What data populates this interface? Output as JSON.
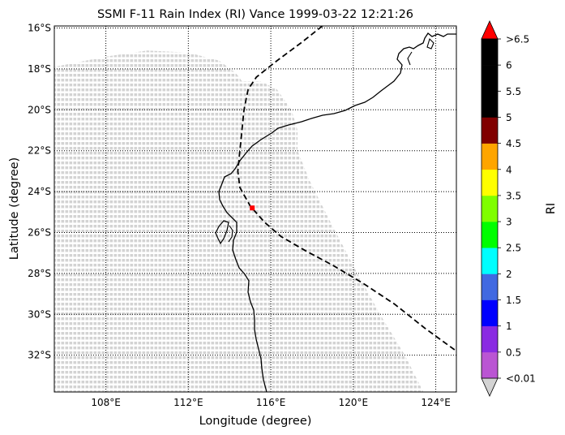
{
  "title": "SSMI F-11 Rain Index (RI) Vance 1999-03-22 12:21:26",
  "x_label": "Longitude (degree)",
  "y_label": "Latitude (degree)",
  "x_ticks": [
    {
      "value": 108,
      "label": "108°E"
    },
    {
      "value": 112,
      "label": "112°E"
    },
    {
      "value": 116,
      "label": "116°E"
    },
    {
      "value": 120,
      "label": "120°E"
    },
    {
      "value": 124,
      "label": "124°E"
    }
  ],
  "y_ticks": [
    {
      "value": -16,
      "label": "16°S"
    },
    {
      "value": -18,
      "label": "18°S"
    },
    {
      "value": -20,
      "label": "20°S"
    },
    {
      "value": -22,
      "label": "22°S"
    },
    {
      "value": -24,
      "label": "24°S"
    },
    {
      "value": -26,
      "label": "26°S"
    },
    {
      "value": -28,
      "label": "28°S"
    },
    {
      "value": -30,
      "label": "30°S"
    },
    {
      "value": -32,
      "label": "32°S"
    }
  ],
  "colorbar": {
    "label": "RI",
    "under_color": "#d3d3d3",
    "over_color": "#ff0000",
    "bins": [
      {
        "color": "#ba55d3"
      },
      {
        "color": "#8a2be2"
      },
      {
        "color": "#0000ff"
      },
      {
        "color": "#4169e1"
      },
      {
        "color": "#00ffff"
      },
      {
        "color": "#00ff00"
      },
      {
        "color": "#7fff00"
      },
      {
        "color": "#ffff00"
      },
      {
        "color": "#ffa500"
      },
      {
        "color": "#800000"
      },
      {
        "color": "#000000"
      },
      {
        "color": "#000000"
      },
      {
        "color": "#000000"
      }
    ],
    "tick_labels": [
      "<0.01",
      "0.5",
      "1",
      "1.5",
      "2",
      "2.5",
      "3",
      "3.5",
      "4",
      "4.5",
      "5",
      "5.5",
      "6",
      ">6.5"
    ]
  },
  "chart_data": {
    "type": "scatter",
    "title": "SSMI F-11 Rain Index (RI) Vance 1999-03-22 12:21:26",
    "xlabel": "Longitude (degree)",
    "ylabel": "Latitude (degree)",
    "xlim": [
      105.5,
      125
    ],
    "ylim": [
      -33.8,
      -15.9
    ],
    "grid": true,
    "series": [
      {
        "kind": "swath",
        "color": "#d3d3d3",
        "boundary": [
          [
            105.5,
            -17.9
          ],
          [
            106.5,
            -17.7
          ],
          [
            108.0,
            -17.4
          ],
          [
            110.0,
            -17.1
          ],
          [
            112.0,
            -17.2
          ],
          [
            113.5,
            -17.6
          ],
          [
            114.3,
            -18.2
          ],
          [
            114.6,
            -18.6
          ],
          [
            115.5,
            -18.6
          ],
          [
            116.3,
            -19.0
          ],
          [
            117.0,
            -20.0
          ],
          [
            117.3,
            -21.0
          ],
          [
            117.3,
            -22.0
          ],
          [
            117.9,
            -23.5
          ],
          [
            118.9,
            -25.5
          ],
          [
            120.2,
            -28.0
          ],
          [
            121.3,
            -30.0
          ],
          [
            122.5,
            -32.0
          ],
          [
            123.4,
            -33.8
          ],
          [
            105.5,
            -33.8
          ]
        ]
      },
      {
        "kind": "storm_track",
        "style": "dashed",
        "color": "#000000",
        "points": [
          [
            118.5,
            -15.9
          ],
          [
            117.5,
            -16.7
          ],
          [
            116.3,
            -17.6
          ],
          [
            115.3,
            -18.4
          ],
          [
            114.9,
            -19.0
          ],
          [
            114.7,
            -20.0
          ],
          [
            114.6,
            -21.0
          ],
          [
            114.5,
            -22.0
          ],
          [
            114.4,
            -23.0
          ],
          [
            114.5,
            -23.8
          ],
          [
            115.0,
            -24.7
          ],
          [
            115.7,
            -25.5
          ],
          [
            116.5,
            -26.2
          ],
          [
            117.7,
            -26.9
          ],
          [
            119.0,
            -27.6
          ],
          [
            120.5,
            -28.5
          ],
          [
            122.0,
            -29.5
          ],
          [
            123.5,
            -30.7
          ],
          [
            125.0,
            -31.8
          ]
        ]
      },
      {
        "kind": "rain_pixel",
        "color": "#ff0000",
        "points": [
          [
            115.1,
            -24.8
          ]
        ]
      }
    ]
  }
}
